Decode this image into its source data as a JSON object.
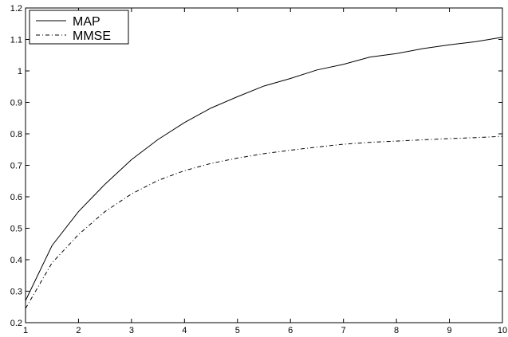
{
  "chart_data": {
    "type": "line",
    "title": "",
    "xlabel": "",
    "ylabel": "",
    "xlim": [
      1,
      10
    ],
    "ylim": [
      0.2,
      1.2
    ],
    "grid": false,
    "legend_position": "top-left",
    "x_ticks": [
      "1",
      "2",
      "3",
      "4",
      "5",
      "6",
      "7",
      "8",
      "9",
      "10"
    ],
    "y_ticks": [
      "0.2",
      "0.3",
      "0.4",
      "0.5",
      "0.6",
      "0.7",
      "0.8",
      "0.9",
      "1",
      "1.1",
      "1.2"
    ],
    "x": [
      1,
      1.5,
      2,
      2.5,
      3,
      3.5,
      4,
      4.5,
      5,
      5.5,
      6,
      6.5,
      7,
      7.5,
      8,
      8.5,
      9,
      9.5,
      10
    ],
    "series": [
      {
        "name": "MAP",
        "line_style": "solid",
        "color": "#000000",
        "values": [
          0.27,
          0.445,
          0.553,
          0.64,
          0.718,
          0.782,
          0.836,
          0.882,
          0.918,
          0.952,
          0.976,
          1.003,
          1.021,
          1.044,
          1.055,
          1.071,
          1.083,
          1.093,
          1.107
        ]
      },
      {
        "name": "MMSE",
        "line_style": "dash-dot",
        "color": "#000000",
        "values": [
          0.245,
          0.39,
          0.48,
          0.553,
          0.609,
          0.652,
          0.683,
          0.706,
          0.723,
          0.737,
          0.748,
          0.758,
          0.767,
          0.773,
          0.777,
          0.781,
          0.785,
          0.788,
          0.792
        ]
      }
    ]
  }
}
